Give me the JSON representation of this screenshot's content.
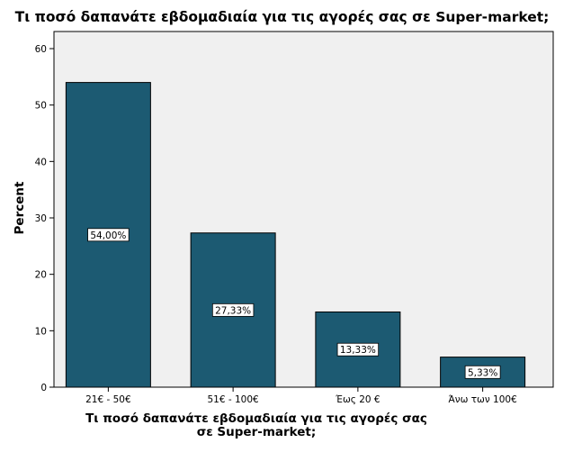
{
  "chart_data": {
    "type": "bar",
    "title": "Τι ποσό δαπανάτε εβδομαδιαία για τις αγορές σας σε Super-market;",
    "xlabel": "Τι ποσό δαπανάτε εβδομαδιαία για τις αγορές σας σε Super-market;",
    "ylabel": "Percent",
    "categories": [
      "21€ - 50€",
      "51€ - 100€",
      "Έως 20 €",
      "Άνω των 100€"
    ],
    "values": [
      54.0,
      27.33,
      13.33,
      5.33
    ],
    "data_labels": [
      "54,00%",
      "27,33%",
      "13,33%",
      "5,33%"
    ],
    "ylim": [
      0,
      60
    ],
    "yticks": [
      0,
      10,
      20,
      30,
      40,
      50,
      60
    ],
    "grid": false,
    "legend": "none",
    "colors": {
      "bar": "#1c5a72",
      "plot_background": "#f0f0f0"
    }
  }
}
